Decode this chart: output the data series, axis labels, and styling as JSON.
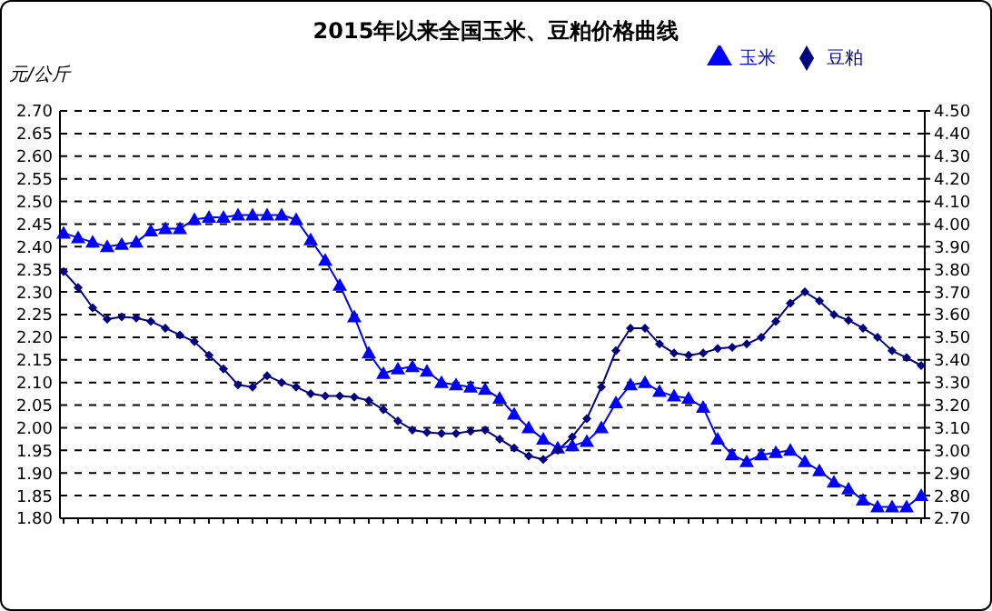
{
  "chart_data": {
    "type": "line",
    "title": "2015年以来全国玉米、豆粕价格曲线",
    "ylabel": "元/公斤",
    "categories": [
      null,
      null,
      null,
      null,
      null,
      null,
      null,
      null,
      null,
      null,
      null,
      null,
      null,
      null,
      null,
      null,
      null,
      null,
      null,
      null,
      null,
      null,
      null,
      null,
      null,
      null,
      null,
      null,
      null,
      null,
      null,
      null,
      null,
      null,
      null,
      null,
      null,
      null,
      null,
      null,
      null,
      null,
      null,
      null,
      null,
      null,
      null,
      null,
      null,
      null,
      null,
      null,
      null,
      null,
      null,
      null,
      null,
      null,
      null,
      null
    ],
    "series": [
      {
        "name": "玉米",
        "color": "#0000ff",
        "marker": "triangle",
        "values": [
          2.43,
          2.42,
          2.41,
          2.4,
          2.405,
          2.41,
          2.435,
          2.44,
          2.44,
          2.46,
          2.465,
          2.465,
          2.47,
          2.47,
          2.47,
          2.47,
          2.46,
          2.415,
          2.37,
          2.315,
          2.245,
          2.165,
          2.12,
          2.13,
          2.135,
          2.125,
          2.1,
          2.095,
          2.09,
          2.085,
          2.065,
          2.03,
          2.0,
          1.975,
          1.955,
          1.96,
          1.97,
          2.0,
          2.055,
          2.095,
          2.1,
          2.08,
          2.07,
          2.065,
          2.045,
          1.975,
          1.94,
          1.925,
          1.94,
          1.945,
          1.95,
          1.925,
          1.905,
          1.88,
          1.865,
          1.84,
          1.825,
          1.825,
          1.825,
          1.85
        ]
      },
      {
        "name": "豆粕",
        "color": "#000080",
        "marker": "diamond",
        "axis": "y2",
        "values": [
          3.79,
          3.72,
          3.63,
          3.58,
          3.59,
          3.585,
          3.57,
          3.54,
          3.51,
          3.48,
          3.42,
          3.36,
          3.29,
          3.28,
          3.33,
          3.3,
          3.28,
          3.25,
          3.24,
          3.24,
          3.235,
          3.22,
          3.18,
          3.13,
          3.09,
          3.08,
          3.075,
          3.075,
          3.085,
          3.09,
          3.05,
          3.01,
          2.975,
          2.96,
          3.0,
          3.06,
          3.14,
          3.28,
          3.44,
          3.54,
          3.54,
          3.47,
          3.43,
          3.42,
          3.43,
          3.45,
          3.455,
          3.47,
          3.5,
          3.57,
          3.65,
          3.7,
          3.66,
          3.6,
          3.575,
          3.54,
          3.5,
          3.44,
          3.41,
          3.375
        ]
      }
    ],
    "ylim": [
      1.8,
      2.7
    ],
    "yticks": [
      {
        "value": 1.8,
        "label": "1.80"
      },
      1.85,
      {
        "value": 1.9,
        "label": "1.90"
      },
      1.95,
      {
        "value": 2.0,
        "label": "2.00"
      },
      2.05,
      {
        "value": 2.1,
        "label": "2.10"
      },
      2.15,
      {
        "value": 2.2,
        "label": "2.20"
      },
      2.25,
      {
        "value": 2.3,
        "label": "2.30"
      },
      2.35,
      {
        "value": 2.4,
        "label": "2.40"
      },
      2.45,
      {
        "value": 2.5,
        "label": "2.50"
      },
      2.55,
      {
        "value": 2.6,
        "label": "2.60"
      },
      2.65,
      {
        "value": 2.7,
        "label": "2.70"
      }
    ],
    "y2lim": [
      2.7,
      4.5
    ],
    "y2ticks": [
      {
        "value": 2.7,
        "label": "2.70"
      },
      {
        "value": 2.8,
        "label": "2.80"
      },
      {
        "value": 2.9,
        "label": "2.90"
      },
      {
        "value": 3.0,
        "label": "3.00"
      },
      {
        "value": 3.1,
        "label": "3.10"
      },
      {
        "value": 3.2,
        "label": "3.20"
      },
      {
        "value": 3.3,
        "label": "3.30"
      },
      {
        "value": 3.4,
        "label": "3.40"
      },
      {
        "value": 3.5,
        "label": "3.50"
      },
      {
        "value": 3.6,
        "label": "3.60"
      },
      {
        "value": 3.7,
        "label": "3.70"
      },
      {
        "value": 3.8,
        "label": "3.80"
      },
      {
        "value": 3.9,
        "label": "3.90"
      },
      {
        "value": 4.0,
        "label": "4.00"
      },
      {
        "value": 4.1,
        "label": "4.10"
      },
      {
        "value": 4.2,
        "label": "4.20"
      },
      {
        "value": 4.3,
        "label": "4.30"
      },
      {
        "value": 4.4,
        "label": "4.40"
      },
      {
        "value": 4.5,
        "label": "4.50"
      }
    ],
    "grid": "y",
    "legend": "top"
  }
}
